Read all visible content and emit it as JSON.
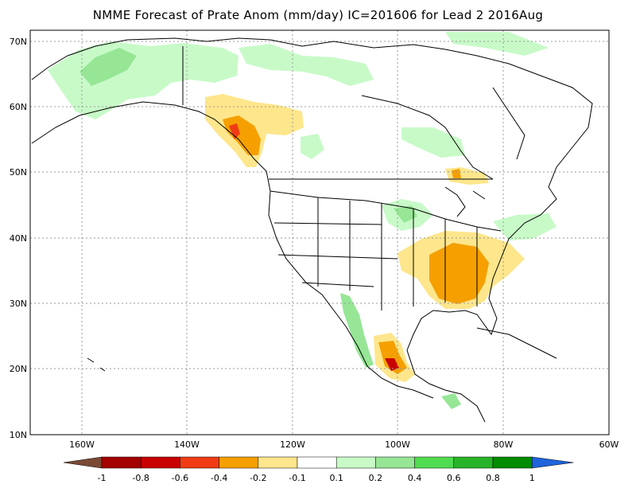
{
  "title": "NMME Forecast of Prate Anom (mm/day) IC=201606 for Lead 2 2016Aug",
  "axes": {
    "lat_labels": [
      "70N",
      "60N",
      "50N",
      "40N",
      "30N",
      "20N",
      "10N"
    ],
    "lon_labels": [
      "160W",
      "140W",
      "120W",
      "100W",
      "80W",
      "60W"
    ]
  },
  "colorbar": {
    "labels": [
      "-1",
      "-0.8",
      "-0.6",
      "-0.4",
      "-0.2",
      "-0.1",
      "0.1",
      "0.2",
      "0.4",
      "0.6",
      "0.8",
      "1"
    ],
    "colors": [
      "#7a4a36",
      "#a50000",
      "#c80000",
      "#f03c14",
      "#f5a000",
      "#fde68c",
      "#ffffff",
      "#c8fac8",
      "#96e696",
      "#50dc50",
      "#28b428",
      "#008c00",
      "#1e64dc"
    ]
  },
  "colors": {
    "land_outline": "#000000",
    "grid": "#999999",
    "dry_light": "#fde68c",
    "dry_mid": "#f5a000",
    "dry_strong": "#f03c14",
    "dry_max": "#c80000",
    "wet_light": "#c8fac8",
    "wet_mid": "#96e696",
    "wet_strong": "#50dc50"
  }
}
